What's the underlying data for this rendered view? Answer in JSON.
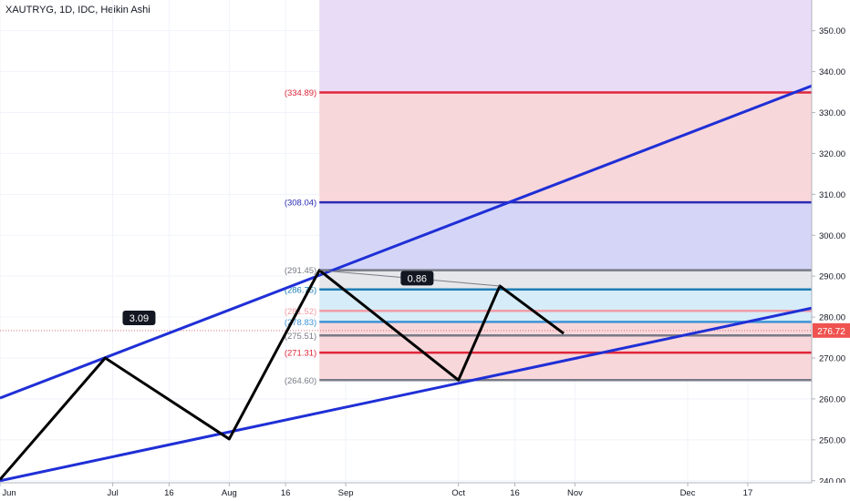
{
  "header": {
    "title": "XAUTRYG, 1D, IDC, Heikin Ashi"
  },
  "chart_data": {
    "type": "candlestick",
    "symbol": "XAUTRYG",
    "interval": "1D",
    "source": "IDC",
    "style": "Heikin Ashi",
    "price_axis": {
      "side": "right",
      "ticks": [
        240,
        250,
        260,
        270,
        280,
        290,
        300,
        310,
        320,
        330,
        340,
        350
      ],
      "tick_labels": [
        "240.00",
        "250.00",
        "260.00",
        "270.00",
        "280.00",
        "290.00",
        "300.00",
        "310.00",
        "320.00",
        "330.00",
        "340.00",
        "350.00"
      ],
      "range": [
        239.5,
        357.5
      ]
    },
    "time_axis": {
      "labels": [
        "Jun",
        "Jul",
        "16",
        "Aug",
        "16",
        "Sep",
        "Oct",
        "16",
        "Nov",
        "Dec",
        "17"
      ],
      "label_days": [
        0,
        30,
        45,
        61,
        76,
        92,
        122,
        137,
        153,
        183,
        199
      ],
      "range_days": [
        0,
        216
      ]
    },
    "current_price": {
      "value": 276.72,
      "label": "276.72"
    },
    "grid": true,
    "candles": [],
    "zigzag_days": [
      0,
      28,
      61,
      85,
      122,
      133,
      150
    ],
    "zigzag_prices": [
      240.3,
      270.0,
      250.2,
      291.45,
      264.6,
      287.6,
      276.0
    ],
    "zigzag_label": "0.86",
    "channel_label": "3.09",
    "upper_channel": {
      "start_day": 0,
      "start_price": 260.2,
      "end_day": 216,
      "end_price": 336.5
    },
    "lower_channel": {
      "start_day": 0,
      "start_price": 240.0,
      "end_day": 216,
      "end_price": 282.2
    },
    "fib_start_day": 85,
    "fib_end_day": 216,
    "fib_levels": [
      {
        "label": "(334.89)",
        "value": 334.89,
        "color": "#e0263a"
      },
      {
        "label": "(308.04)",
        "value": 308.04,
        "color": "#2a2ab3"
      },
      {
        "label": "(291.45)",
        "value": 291.45,
        "color": "#787b86"
      },
      {
        "label": "(286.75)",
        "value": 286.75,
        "color": "#1e7fb5"
      },
      {
        "label": "(281.52)",
        "value": 281.52,
        "color": "#f29ca6"
      },
      {
        "label": "(278.83)",
        "value": 278.83,
        "color": "#3e93d6"
      },
      {
        "label": "(275.51)",
        "value": 275.51,
        "color": "#787b86"
      },
      {
        "label": "(271.31)",
        "value": 271.31,
        "color": "#e0263a"
      },
      {
        "label": "(264.60)",
        "value": 264.6,
        "color": "#787b86"
      }
    ],
    "fib_zones": [
      {
        "from": 334.89,
        "to": 357.5,
        "color": "#e9dcf7"
      },
      {
        "from": 308.04,
        "to": 334.89,
        "color": "#f8d7da"
      },
      {
        "from": 291.45,
        "to": 308.04,
        "color": "#d5d6f7"
      },
      {
        "from": 286.75,
        "to": 291.45,
        "color": "#e6e7ea"
      },
      {
        "from": 278.83,
        "to": 286.75,
        "color": "#d6ecf8"
      },
      {
        "from": 264.6,
        "to": 278.83,
        "color": "#f8d7da"
      }
    ]
  }
}
